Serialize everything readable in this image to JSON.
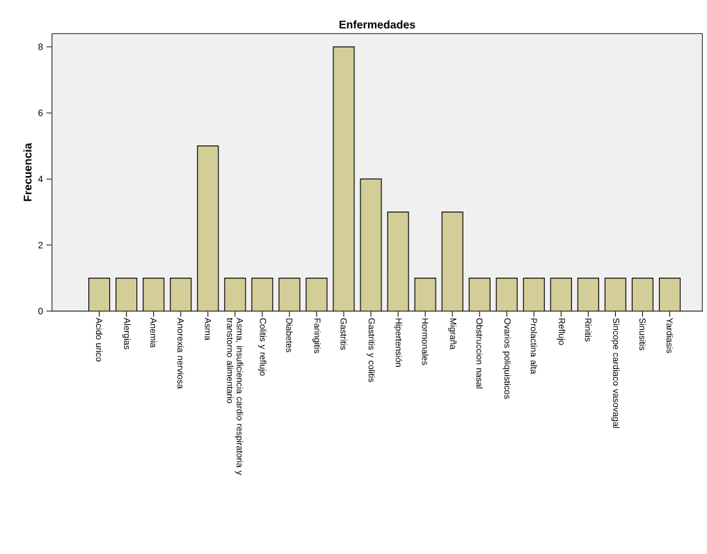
{
  "chart_data": {
    "type": "bar",
    "title": "Enfermedades",
    "ylabel": "Frecuencia",
    "categories": [
      "Acido urico",
      "Alergias",
      "Anemia",
      "Anorexia nerviosa",
      "Asma",
      "Asma, insuficiencia cardio respiratoria y transtorno alimentario",
      "Colitis y reflujo",
      "Diabetes",
      "Faringitis",
      "Gastritis",
      "Gastritis y colitis",
      "Hipertensión",
      "Hormonales",
      "Migraña",
      "Obstruccion nasal",
      "Ovarios poliquisticos",
      "Prolactina alta",
      "Reflujo",
      "Rinitis",
      "Sincope cardiaco vasovagal",
      "Sinusitis",
      "Yardiasis"
    ],
    "values": [
      1,
      1,
      1,
      1,
      5,
      1,
      1,
      1,
      1,
      8,
      4,
      3,
      1,
      3,
      1,
      1,
      1,
      1,
      1,
      1,
      1,
      1
    ],
    "color": "#d3ce98",
    "ylim": [
      0,
      8.4
    ],
    "yticks": [
      0,
      2,
      4,
      6,
      8
    ],
    "grid": false
  }
}
